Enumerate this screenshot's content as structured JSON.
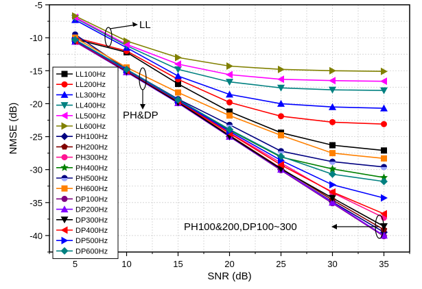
{
  "chart_data": {
    "type": "line",
    "xlabel": "SNR (dB)",
    "ylabel": "NMSE (dB)",
    "xlim": [
      2.5,
      37.5
    ],
    "ylim": [
      -42.5,
      -5
    ],
    "xticks": [
      5,
      10,
      15,
      20,
      25,
      30,
      35
    ],
    "yticks": [
      -5,
      -10,
      -15,
      -20,
      -25,
      -30,
      -35,
      -40
    ],
    "grid": true,
    "legend_position": "left",
    "x": [
      5,
      10,
      15,
      20,
      25,
      30,
      35
    ],
    "series": [
      {
        "name": "LL100Hz",
        "marker": "square",
        "color": "#000000",
        "values": [
          -10.2,
          -12.2,
          -17.0,
          -21.2,
          -24.4,
          -26.3,
          -27.1
        ]
      },
      {
        "name": "LL200Hz",
        "marker": "circle",
        "color": "#ff0000",
        "values": [
          -10.0,
          -12.0,
          -16.3,
          -19.8,
          -21.9,
          -22.8,
          -23.1
        ]
      },
      {
        "name": "LL300Hz",
        "marker": "triangle-up",
        "color": "#0000ff",
        "values": [
          -7.3,
          -11.5,
          -15.8,
          -18.6,
          -20.0,
          -20.5,
          -20.7
        ]
      },
      {
        "name": "LL400Hz",
        "marker": "triangle-down",
        "color": "#008080",
        "values": [
          -7.0,
          -11.2,
          -14.8,
          -16.7,
          -17.6,
          -17.9,
          -18.0
        ]
      },
      {
        "name": "LL500Hz",
        "marker": "triangle-left",
        "color": "#ff00ff",
        "values": [
          -6.9,
          -11.0,
          -14.0,
          -15.6,
          -16.3,
          -16.5,
          -16.6
        ]
      },
      {
        "name": "LL600Hz",
        "marker": "triangle-right",
        "color": "#808000",
        "values": [
          -6.7,
          -10.5,
          -13.0,
          -14.3,
          -14.8,
          -15.0,
          -15.1
        ]
      },
      {
        "name": "PH100Hz",
        "marker": "diamond",
        "color": "#000080",
        "values": [
          -10.5,
          -15.2,
          -19.8,
          -25.0,
          -30.0,
          -34.9,
          -39.5
        ]
      },
      {
        "name": "PH200Hz",
        "marker": "pentagon",
        "color": "#800000",
        "values": [
          -10.5,
          -15.1,
          -19.7,
          -24.8,
          -29.8,
          -34.6,
          -39.1
        ]
      },
      {
        "name": "PH300Hz",
        "marker": "circle",
        "color": "#ff1493",
        "values": [
          -10.4,
          -15.0,
          -19.5,
          -24.4,
          -29.0,
          -33.5,
          -37.3
        ]
      },
      {
        "name": "PH400Hz",
        "marker": "star",
        "color": "#008000",
        "values": [
          -10.4,
          -14.9,
          -19.4,
          -24.0,
          -28.1,
          -29.9,
          -31.2
        ]
      },
      {
        "name": "PH500Hz",
        "marker": "circle-half",
        "color": "#000080",
        "values": [
          -9.5,
          -14.8,
          -19.3,
          -23.2,
          -27.2,
          -28.8,
          -29.6
        ]
      },
      {
        "name": "PH600Hz",
        "marker": "square",
        "color": "#ff8000",
        "values": [
          -10.0,
          -14.5,
          -18.3,
          -21.8,
          -24.8,
          -27.5,
          -28.3
        ]
      },
      {
        "name": "DP100Hz",
        "marker": "circle",
        "color": "#800080",
        "values": [
          -10.6,
          -15.2,
          -19.9,
          -25.0,
          -30.1,
          -35.1,
          -40.1
        ]
      },
      {
        "name": "DP200Hz",
        "marker": "triangle-up",
        "color": "#8000ff",
        "values": [
          -10.6,
          -15.2,
          -19.9,
          -25.0,
          -30.0,
          -35.0,
          -40.0
        ]
      },
      {
        "name": "DP300Hz",
        "marker": "triangle-down",
        "color": "#000000",
        "values": [
          -10.5,
          -15.1,
          -19.8,
          -24.9,
          -29.9,
          -34.3,
          -38.6
        ]
      },
      {
        "name": "DP400Hz",
        "marker": "triangle-left",
        "color": "#ff0000",
        "values": [
          -10.5,
          -15.0,
          -19.6,
          -24.5,
          -29.3,
          -33.4,
          -36.7
        ]
      },
      {
        "name": "DP500Hz",
        "marker": "triangle-right",
        "color": "#0000ff",
        "values": [
          -10.4,
          -14.9,
          -19.5,
          -24.2,
          -28.6,
          -32.3,
          -34.3
        ]
      },
      {
        "name": "DP600Hz",
        "marker": "diamond",
        "color": "#008080",
        "values": [
          -10.3,
          -14.8,
          -19.4,
          -23.9,
          -28.0,
          -30.7,
          -31.8
        ]
      }
    ],
    "annotations": [
      {
        "text": "LL"
      },
      {
        "text": "PH&DP"
      },
      {
        "text": "PH100&200,DP100~300"
      }
    ]
  }
}
